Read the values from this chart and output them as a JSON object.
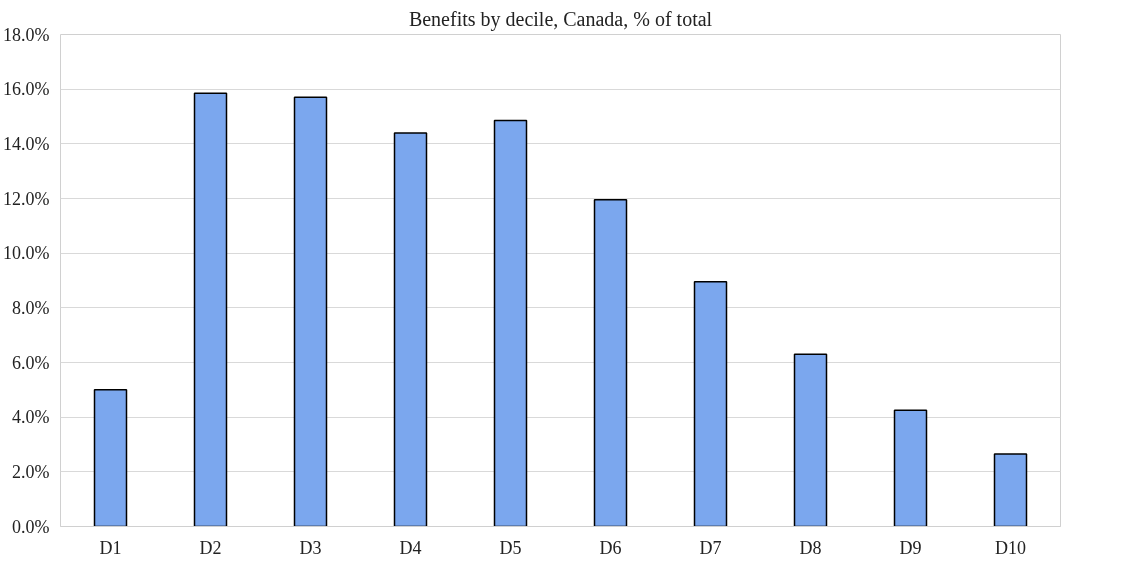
{
  "chart_data": {
    "type": "bar",
    "title": "Benefits by decile, Canada, % of total",
    "categories": [
      "D1",
      "D2",
      "D3",
      "D4",
      "D5",
      "D6",
      "D7",
      "D8",
      "D9",
      "D10"
    ],
    "values": [
      5.0,
      15.85,
      15.7,
      14.4,
      14.85,
      11.95,
      8.95,
      6.3,
      4.25,
      2.65
    ],
    "color": "#7ba7ee",
    "ylim": [
      0,
      18
    ],
    "yticks": [
      {
        "value": 0,
        "label": "0.0%"
      },
      {
        "value": 2,
        "label": "2.0%"
      },
      {
        "value": 4,
        "label": "4.0%"
      },
      {
        "value": 6,
        "label": "6.0%"
      },
      {
        "value": 8,
        "label": "8.0%"
      },
      {
        "value": 10,
        "label": "10.0%"
      },
      {
        "value": 12,
        "label": "12.0%"
      },
      {
        "value": 14,
        "label": "14.0%"
      },
      {
        "value": 16,
        "label": "16.0%"
      },
      {
        "value": 18,
        "label": "18.0%"
      }
    ],
    "grid": "y"
  }
}
